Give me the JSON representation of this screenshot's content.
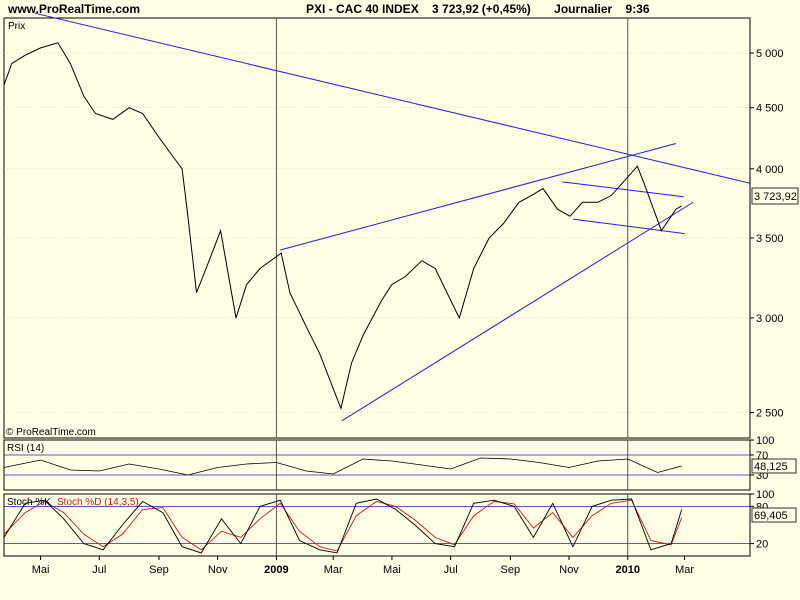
{
  "header": {
    "site": "www.ProRealTime.com",
    "instrument": "PXI - CAC 40 INDEX",
    "price": "3 723,92",
    "change": "(+0,45%)",
    "period": "Journalier",
    "time": "9:36"
  },
  "panels": {
    "price_label": "Prix",
    "rsi_label": "RSI (14)",
    "stoch_k_label": "Stoch %K",
    "stoch_d_label": "Stoch %D (14,3,5)",
    "copyright": "© ProRealTime.com"
  },
  "colors": {
    "background": "#ffffe6",
    "price": "#000000",
    "trendline": "#1f1fd8",
    "stoch_d": "#d01818",
    "gridline": "#c8c8b4",
    "year_line": "#555555"
  },
  "chart_data": [
    {
      "type": "line",
      "name": "price",
      "y_scale": "log",
      "ylim": [
        2380,
        5350
      ],
      "y_ticks": [
        5000,
        4500,
        4000,
        3500,
        3000,
        2500
      ],
      "y_tick_labels": [
        "5 000",
        "4 500",
        "4 000",
        "3 500",
        "3 000",
        "2 500"
      ],
      "current_value_label": "3 723,92",
      "x_ticks": [
        "Mai",
        "Jul",
        "Sep",
        "Nov",
        "2009",
        "Mar",
        "Mai",
        "Jul",
        "Sep",
        "Nov",
        "2010",
        "Mar"
      ],
      "x_tick_dates": [
        "2008-05-01",
        "2008-07-01",
        "2008-09-01",
        "2008-11-01",
        "2009-01-01",
        "2009-03-01",
        "2009-05-01",
        "2009-07-01",
        "2009-09-01",
        "2009-11-01",
        "2010-01-01",
        "2010-03-01"
      ],
      "xlim": [
        "2008-03-24",
        "2010-05-08"
      ],
      "series": [
        {
          "x": [
            "2008-03-24",
            "2008-04-01",
            "2008-04-15",
            "2008-05-01",
            "2008-05-19",
            "2008-06-01",
            "2008-06-15",
            "2008-06-27",
            "2008-07-15",
            "2008-08-01",
            "2008-08-15",
            "2008-09-01",
            "2008-09-15",
            "2008-09-25",
            "2008-10-01",
            "2008-10-10",
            "2008-10-20",
            "2008-11-04",
            "2008-11-20",
            "2008-12-01",
            "2008-12-15",
            "2009-01-06",
            "2009-01-15",
            "2009-02-01",
            "2009-02-15",
            "2009-03-09",
            "2009-03-20",
            "2009-04-01",
            "2009-04-20",
            "2009-05-01",
            "2009-05-15",
            "2009-06-01",
            "2009-06-15",
            "2009-07-10",
            "2009-07-25",
            "2009-08-10",
            "2009-08-25",
            "2009-09-10",
            "2009-09-23",
            "2009-10-05",
            "2009-10-20",
            "2009-11-02",
            "2009-11-15",
            "2009-12-01",
            "2009-12-15",
            "2010-01-11",
            "2010-01-20",
            "2010-02-05",
            "2010-02-20",
            "2010-02-26"
          ],
          "values": [
            4700,
            4900,
            4980,
            5050,
            5100,
            4900,
            4600,
            4450,
            4400,
            4500,
            4450,
            4250,
            4100,
            4000,
            3650,
            3150,
            3300,
            3550,
            3000,
            3200,
            3300,
            3400,
            3150,
            2950,
            2800,
            2520,
            2750,
            2900,
            3100,
            3200,
            3250,
            3350,
            3300,
            3000,
            3300,
            3500,
            3600,
            3750,
            3800,
            3850,
            3700,
            3650,
            3750,
            3750,
            3800,
            4020,
            3850,
            3550,
            3700,
            3724
          ]
        }
      ],
      "trendlines": [
        {
          "x": [
            "2008-04-25",
            "2010-05-08"
          ],
          "y": [
            5400,
            3890
          ]
        },
        {
          "x": [
            "2009-01-05",
            "2010-02-20"
          ],
          "y": [
            3420,
            4200
          ]
        },
        {
          "x": [
            "2009-03-10",
            "2010-03-10"
          ],
          "y": [
            2460,
            3750
          ]
        },
        {
          "x": [
            "2009-10-25",
            "2010-02-28"
          ],
          "y": [
            3900,
            3790
          ]
        },
        {
          "x": [
            "2009-11-05",
            "2010-03-01"
          ],
          "y": [
            3630,
            3530
          ]
        }
      ]
    },
    {
      "type": "line",
      "name": "RSI (14)",
      "ylim": [
        0,
        100
      ],
      "y_ticks": [
        100,
        70,
        30
      ],
      "y_tick_labels": [
        "100",
        "70",
        "30"
      ],
      "current_value_label": "48,125",
      "series": [
        {
          "x": [
            "2008-03-24",
            "2008-05-01",
            "2008-06-01",
            "2008-07-01",
            "2008-08-01",
            "2008-09-01",
            "2008-10-01",
            "2008-11-01",
            "2008-12-01",
            "2009-01-01",
            "2009-02-01",
            "2009-03-01",
            "2009-04-01",
            "2009-05-01",
            "2009-06-01",
            "2009-07-01",
            "2009-08-01",
            "2009-09-01",
            "2009-10-01",
            "2009-11-01",
            "2009-12-01",
            "2010-01-01",
            "2010-02-01",
            "2010-02-26"
          ],
          "values": [
            45,
            60,
            40,
            38,
            52,
            42,
            30,
            45,
            52,
            55,
            38,
            32,
            62,
            58,
            50,
            42,
            64,
            62,
            55,
            45,
            58,
            62,
            35,
            48
          ]
        }
      ]
    },
    {
      "type": "line",
      "name": "Stoch %K / %D (14,3,5)",
      "ylim": [
        0,
        100
      ],
      "y_ticks": [
        100,
        80,
        20
      ],
      "y_tick_labels": [
        "100",
        "80",
        "20"
      ],
      "current_value_label": "69,405",
      "series": [
        {
          "name": "Stoch %K",
          "x": [
            "2008-03-24",
            "2008-04-15",
            "2008-05-05",
            "2008-05-25",
            "2008-06-15",
            "2008-07-05",
            "2008-07-25",
            "2008-08-15",
            "2008-09-05",
            "2008-09-25",
            "2008-10-15",
            "2008-11-05",
            "2008-11-25",
            "2008-12-15",
            "2009-01-05",
            "2009-01-25",
            "2009-02-15",
            "2009-03-05",
            "2009-03-25",
            "2009-04-15",
            "2009-05-05",
            "2009-05-25",
            "2009-06-15",
            "2009-07-05",
            "2009-07-25",
            "2009-08-15",
            "2009-09-05",
            "2009-09-25",
            "2009-10-15",
            "2009-11-05",
            "2009-11-25",
            "2009-12-15",
            "2010-01-05",
            "2010-01-25",
            "2010-02-15",
            "2010-02-26"
          ],
          "values": [
            30,
            85,
            90,
            60,
            20,
            10,
            50,
            88,
            70,
            15,
            5,
            60,
            20,
            80,
            90,
            25,
            10,
            5,
            85,
            92,
            75,
            50,
            20,
            15,
            85,
            90,
            80,
            30,
            85,
            15,
            80,
            90,
            92,
            10,
            20,
            75
          ]
        },
        {
          "name": "Stoch %D (14,3,5)",
          "x": [
            "2008-03-24",
            "2008-04-15",
            "2008-05-05",
            "2008-05-25",
            "2008-06-15",
            "2008-07-05",
            "2008-07-25",
            "2008-08-15",
            "2008-09-05",
            "2008-09-25",
            "2008-10-15",
            "2008-11-05",
            "2008-11-25",
            "2008-12-15",
            "2009-01-05",
            "2009-01-25",
            "2009-02-15",
            "2009-03-05",
            "2009-03-25",
            "2009-04-15",
            "2009-05-05",
            "2009-05-25",
            "2009-06-15",
            "2009-07-05",
            "2009-07-25",
            "2009-08-15",
            "2009-09-05",
            "2009-09-25",
            "2009-10-15",
            "2009-11-05",
            "2009-11-25",
            "2009-12-15",
            "2010-01-05",
            "2010-01-25",
            "2010-02-15",
            "2010-02-26"
          ],
          "values": [
            35,
            70,
            88,
            70,
            35,
            15,
            35,
            75,
            78,
            30,
            10,
            40,
            30,
            60,
            85,
            40,
            15,
            8,
            65,
            88,
            80,
            58,
            30,
            18,
            65,
            88,
            84,
            45,
            70,
            30,
            65,
            85,
            90,
            25,
            18,
            62
          ]
        }
      ]
    }
  ]
}
